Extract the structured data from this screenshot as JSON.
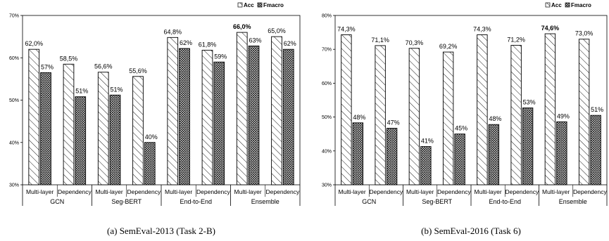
{
  "chart_data": [
    {
      "type": "bar",
      "caption": "(a) SemEval-2013 (Task 2-B)",
      "groups": [
        "GCN",
        "Seg-BERT",
        "End-to-End",
        "Ensemble"
      ],
      "categories": [
        "Multi-layer",
        "Dependency",
        "Multi-layer",
        "Dependency",
        "Multi-layer",
        "Dependency",
        "Multi-layer",
        "Dependency"
      ],
      "ylim": [
        30,
        70
      ],
      "yticks": [
        "30%",
        "40%",
        "50%",
        "60%",
        "70%"
      ],
      "series": [
        {
          "name": "Acc",
          "pattern": "diagonal-hatch",
          "values": [
            62.0,
            58.5,
            56.6,
            55.6,
            64.8,
            61.8,
            66.0,
            65.0
          ],
          "labels": [
            "62,0%",
            "58,5%",
            "56,6%",
            "55,6%",
            "64,8%",
            "61,8%",
            "66,0%",
            "65,0%"
          ]
        },
        {
          "name": "Fmacro",
          "pattern": "cross-hatch",
          "values": [
            56.5,
            50.8,
            51.2,
            40.0,
            62.2,
            59.0,
            62.8,
            62.0
          ],
          "labels": [
            "57%",
            "51%",
            "51%",
            "40%",
            "62%",
            "59%",
            "63%",
            "62%"
          ]
        }
      ],
      "bold_label_index": 6,
      "legend": "top-right",
      "grid": false
    },
    {
      "type": "bar",
      "caption": "(b) SemEval-2016 (Task 6)",
      "groups": [
        "GCN",
        "Seg-BERT",
        "End-to-End",
        "Ensemble"
      ],
      "categories": [
        "Multi-layer",
        "Dependency",
        "Multi-layer",
        "Dependency",
        "Multi-layer",
        "Dependency",
        "Multi-layer",
        "Dependency"
      ],
      "ylim": [
        30,
        80
      ],
      "yticks": [
        "30%",
        "40%",
        "50%",
        "60%",
        "70%",
        "80%"
      ],
      "series": [
        {
          "name": "Acc",
          "pattern": "diagonal-hatch",
          "values": [
            74.3,
            71.1,
            70.3,
            69.2,
            74.3,
            71.2,
            74.6,
            73.0
          ],
          "labels": [
            "74,3%",
            "71,1%",
            "70,3%",
            "69,2%",
            "74,3%",
            "71,2%",
            "74,6%",
            "73,0%"
          ]
        },
        {
          "name": "Fmacro",
          "pattern": "cross-hatch",
          "values": [
            48.3,
            46.7,
            41.3,
            45.0,
            47.8,
            52.7,
            48.6,
            50.5
          ],
          "labels": [
            "48%",
            "47%",
            "41%",
            "45%",
            "48%",
            "53%",
            "49%",
            "51%"
          ]
        }
      ],
      "bold_label_index": 6,
      "legend": "top-right",
      "grid": false
    }
  ]
}
